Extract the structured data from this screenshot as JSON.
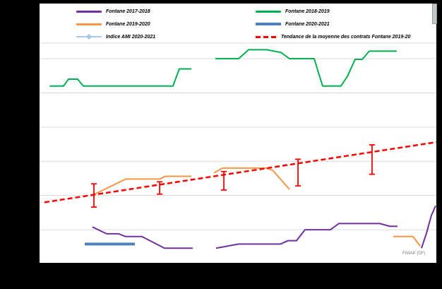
{
  "colors": {
    "canvas_background": "#000000",
    "plot_background": "#ffffff",
    "gridline": "#d9d9d9",
    "error_bar": "#FF0000"
  },
  "legend": {
    "items": [
      {
        "label": "Fontane 2017-2018",
        "color": "#7030A0",
        "style": "line"
      },
      {
        "label": "Fontane 2019-2020",
        "color": "#F79646",
        "style": "line"
      },
      {
        "label": "Indice AMI 2020-2021",
        "color": "#A6C9EC",
        "style": "line-marker"
      },
      {
        "label": "Fontane 2018-2019",
        "color": "#00B050",
        "style": "line"
      },
      {
        "label": "Fontane 2020-2021",
        "color": "#4F81BD",
        "style": "thick-line"
      },
      {
        "label": "Tendance de la moyenne des contrats Fontane 2019-20",
        "color": "#FF0000",
        "style": "dashed"
      }
    ]
  },
  "annotations": {
    "source_note": "FIWAP (DF)"
  },
  "chart_data": {
    "type": "line",
    "title": "",
    "xlabel": "",
    "ylabel": "",
    "x_range": [
      0,
      37.6
    ],
    "ylim": [
      0,
      325
    ],
    "x_axis": {
      "labels_visible": false,
      "tick_count": 38
    },
    "y_axis": {
      "labels_visible": false,
      "gridlines": [
        50,
        100,
        150,
        200,
        250,
        300
      ]
    },
    "legend_position": "top",
    "grid": true,
    "series": [
      {
        "name": "Fontane 2017-2018",
        "color": "#7030A0",
        "width": 2,
        "segments": [
          [
            [
              4.6,
              54
            ],
            [
              5.96,
              44
            ],
            [
              7.11,
              44
            ],
            [
              7.79,
              40
            ],
            [
              9.34,
              40
            ],
            [
              11.51,
              23
            ],
            [
              14.22,
              23
            ]
          ],
          [
            [
              16.45,
              23
            ],
            [
              18.62,
              29
            ],
            [
              22.61,
              29
            ],
            [
              23.36,
              34
            ],
            [
              24.17,
              34
            ],
            [
              24.98,
              50
            ],
            [
              27.42,
              50
            ],
            [
              28.23,
              59
            ],
            [
              32.16,
              59
            ],
            [
              33.11,
              55
            ],
            [
              33.85,
              55
            ]
          ],
          [
            [
              36.15,
              23
            ],
            [
              36.63,
              45
            ],
            [
              37.1,
              71
            ],
            [
              37.51,
              85
            ]
          ]
        ]
      },
      {
        "name": "Fontane 2018-2019",
        "color": "#00B050",
        "width": 2,
        "segments": [
          [
            [
              0.5,
              260
            ],
            [
              1.83,
              260
            ],
            [
              2.3,
              270
            ],
            [
              3.18,
              270
            ],
            [
              3.72,
              260
            ],
            [
              12.32,
              260
            ],
            [
              12.93,
              285
            ],
            [
              14.08,
              285
            ]
          ],
          [
            [
              16.38,
              300
            ],
            [
              18.62,
              300
            ],
            [
              19.57,
              313
            ],
            [
              21.33,
              313
            ],
            [
              22.68,
              309
            ],
            [
              23.49,
              300
            ],
            [
              25.86,
              300
            ],
            [
              26.67,
              260
            ],
            [
              28.43,
              260
            ],
            [
              29.04,
              274
            ],
            [
              29.79,
              299
            ],
            [
              30.47,
              299
            ],
            [
              31.14,
              311
            ],
            [
              33.78,
              311
            ]
          ]
        ]
      },
      {
        "name": "Fontane 2019-2020",
        "color": "#F79646",
        "width": 2,
        "segments": [
          [
            [
              4.81,
              102
            ],
            [
              6.57,
              115
            ],
            [
              7.79,
              124
            ],
            [
              11.04,
              124
            ],
            [
              11.58,
              128
            ],
            [
              14.08,
              128
            ]
          ],
          [
            [
              16.25,
              133
            ],
            [
              17.06,
              140
            ],
            [
              21.26,
              140
            ],
            [
              21.87,
              137
            ],
            [
              23.49,
              109
            ]
          ],
          [
            [
              33.45,
              40
            ],
            [
              35.34,
              40
            ],
            [
              36.02,
              26
            ]
          ]
        ]
      },
      {
        "name": "Fontane 2020-2021",
        "color": "#4F81BD",
        "width": 4,
        "segments": [
          [
            [
              3.86,
              29
            ],
            [
              8.67,
              29
            ]
          ]
        ]
      },
      {
        "name": "Indice AMI 2020-2021",
        "color": "#A6C9EC",
        "width": 1.5,
        "segments": []
      }
    ],
    "trend": {
      "name": "Tendance de la moyenne des contrats Fontane 2019-20",
      "color": "#FF0000",
      "width": 2.5,
      "dash": "7 4",
      "points": [
        [
          0,
          90
        ],
        [
          37.58,
          178
        ]
      ]
    },
    "error_bars": {
      "color": "#FF0000",
      "bars": [
        [
          4.74,
          83,
          117
        ],
        [
          11.04,
          102,
          120
        ],
        [
          17.2,
          108,
          135
        ],
        [
          24.31,
          114,
          153
        ],
        [
          31.41,
          131,
          174
        ]
      ]
    }
  }
}
